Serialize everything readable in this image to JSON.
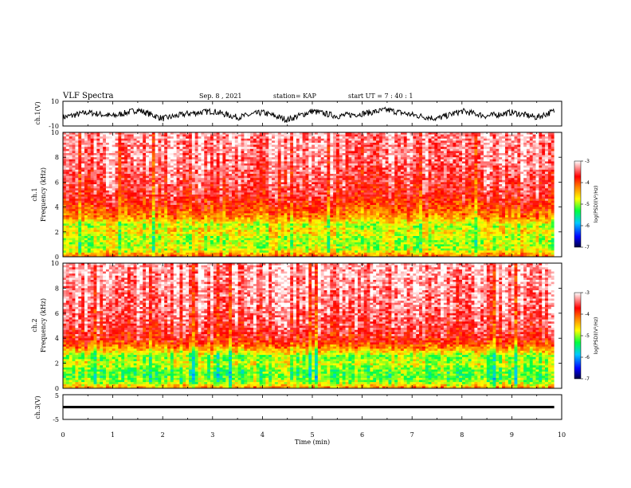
{
  "header": {
    "title": "VLF Spectra",
    "date": "Sep. 8 , 2021",
    "station": "station= KAP",
    "start_time": "start UT = 7 : 40 : 1"
  },
  "chart_data": [
    {
      "type": "line",
      "name": "ch1-waveform",
      "ylabel": "ch.1(V)",
      "ylim": [
        -10,
        10
      ],
      "y_ticks": [
        "10",
        "-10"
      ],
      "xlim": [
        0,
        10
      ],
      "data_extent_min": 9.85,
      "x": [
        0,
        0.5,
        1,
        1.5,
        2,
        2.5,
        3,
        3.5,
        4,
        4.5,
        5,
        5.5,
        6,
        6.5,
        7,
        7.5,
        8,
        8.5,
        9,
        9.5,
        9.85
      ],
      "y": [
        -3,
        1,
        -2,
        3,
        -4,
        0,
        2,
        -3,
        1,
        -5,
        2,
        -2,
        0,
        3,
        -1,
        -4,
        2,
        -2,
        1,
        -3,
        2
      ],
      "color": "#000000"
    },
    {
      "type": "heatmap",
      "name": "ch1-spectrogram",
      "ylabel": "ch.1\nFrequency (kHz)",
      "ylim": [
        0,
        10
      ],
      "y_ticks": [
        "0",
        "2",
        "4",
        "6",
        "8",
        "10"
      ],
      "xlim": [
        0,
        10
      ],
      "data_extent_min": 9.85,
      "colorbar": {
        "label": "log(PSD)(V²/Hz)",
        "range": [
          -7,
          -3
        ],
        "ticks": [
          "-3",
          "-4",
          "-5",
          "-6",
          "-7"
        ]
      },
      "mean_log_psd_profile": {
        "freq_khz": [
          0,
          0.5,
          1,
          1.5,
          2,
          2.5,
          3,
          3.5,
          4,
          5,
          6,
          7,
          8,
          9,
          10
        ],
        "log_psd": [
          -4.0,
          -4.8,
          -4.9,
          -4.9,
          -4.6,
          -4.9,
          -4.4,
          -4.1,
          -3.9,
          -3.6,
          -3.5,
          -3.4,
          -3.3,
          -3.3,
          -3.2
        ]
      }
    },
    {
      "type": "heatmap",
      "name": "ch2-spectrogram",
      "ylabel": "ch.2\nFrequency (kHz)",
      "ylim": [
        0,
        10
      ],
      "y_ticks": [
        "0",
        "2",
        "4",
        "6",
        "8",
        "10"
      ],
      "xlim": [
        0,
        10
      ],
      "data_extent_min": 9.85,
      "colorbar": {
        "label": "log(PSD)(V²/Hz)",
        "range": [
          -7,
          -3
        ],
        "ticks": [
          "-3",
          "-4",
          "-5",
          "-6",
          "-7"
        ]
      },
      "mean_log_psd_profile": {
        "freq_khz": [
          0,
          0.5,
          1,
          1.5,
          2,
          2.5,
          3,
          3.5,
          4,
          5,
          6,
          7,
          8,
          9,
          10
        ],
        "log_psd": [
          -4.2,
          -5.0,
          -5.2,
          -5.1,
          -4.8,
          -5.1,
          -4.5,
          -4.0,
          -3.7,
          -3.5,
          -3.4,
          -3.3,
          -3.3,
          -3.2,
          -3.2
        ]
      }
    },
    {
      "type": "line",
      "name": "ch3-waveform",
      "ylabel": "ch.3(V)",
      "ylim": [
        -5,
        5
      ],
      "y_ticks": [
        "5",
        "-5"
      ],
      "xlim": [
        0,
        10
      ],
      "data_extent_min": 9.85,
      "x": [
        0,
        9.85
      ],
      "y": [
        0,
        0
      ],
      "band_halfwidth_v": 0.5,
      "color": "#000000"
    }
  ],
  "x_axis": {
    "label": "Time (min)",
    "ticks": [
      "0",
      "1",
      "2",
      "3",
      "4",
      "5",
      "6",
      "7",
      "8",
      "9",
      "10"
    ]
  },
  "colors": {
    "colormap": [
      "#000040",
      "#0000ff",
      "#00c8ff",
      "#00ff40",
      "#ffff00",
      "#ff8000",
      "#ff0000",
      "#ffffff"
    ]
  }
}
